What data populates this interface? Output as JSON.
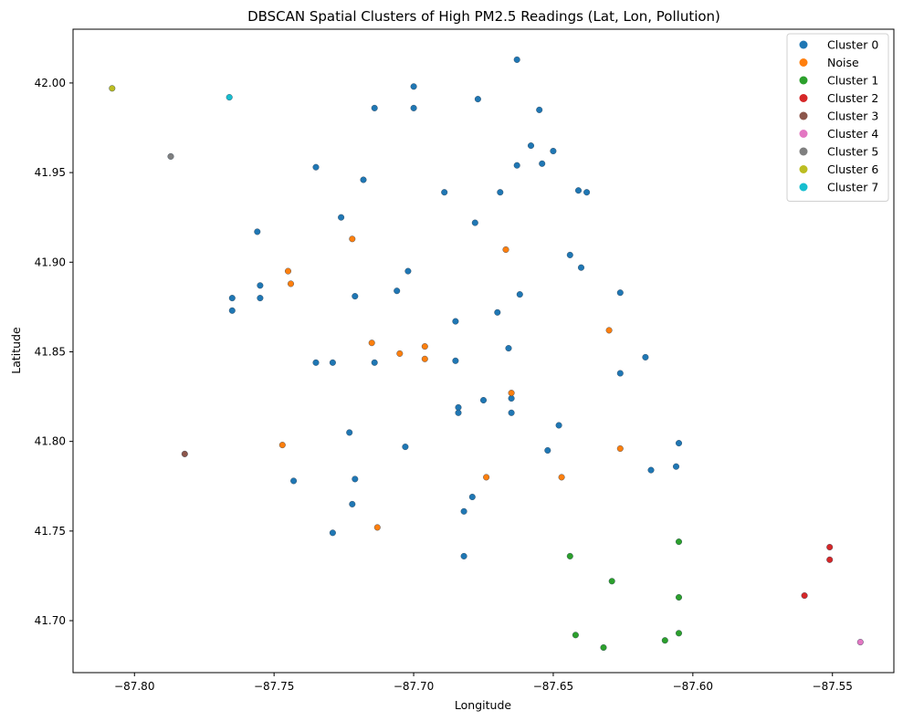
{
  "chart_data": {
    "type": "scatter",
    "title": "DBSCAN Spatial Clusters of High PM2.5 Readings (Lat, Lon, Pollution)",
    "xlabel": "Longitude",
    "ylabel": "Latitude",
    "xlim": [
      -87.822,
      -87.528
    ],
    "ylim": [
      41.671,
      42.03
    ],
    "xticks": [
      -87.8,
      -87.75,
      -87.7,
      -87.65,
      -87.6,
      -87.55
    ],
    "xtick_labels": [
      "−87.80",
      "−87.75",
      "−87.70",
      "−87.65",
      "−87.60",
      "−87.55"
    ],
    "yticks": [
      41.7,
      41.75,
      41.8,
      41.85,
      41.9,
      41.95,
      42.0
    ],
    "ytick_labels": [
      "41.70",
      "41.75",
      "41.80",
      "41.85",
      "41.90",
      "41.95",
      "42.00"
    ],
    "grid": false,
    "legend_position": "top-right",
    "series": [
      {
        "name": "Cluster 0",
        "color": "#1f77b4",
        "points": [
          [
            -87.663,
            42.013
          ],
          [
            -87.7,
            41.998
          ],
          [
            -87.677,
            41.991
          ],
          [
            -87.714,
            41.986
          ],
          [
            -87.7,
            41.986
          ],
          [
            -87.655,
            41.985
          ],
          [
            -87.658,
            41.965
          ],
          [
            -87.65,
            41.962
          ],
          [
            -87.663,
            41.954
          ],
          [
            -87.654,
            41.955
          ],
          [
            -87.735,
            41.953
          ],
          [
            -87.718,
            41.946
          ],
          [
            -87.689,
            41.939
          ],
          [
            -87.669,
            41.939
          ],
          [
            -87.641,
            41.94
          ],
          [
            -87.638,
            41.939
          ],
          [
            -87.726,
            41.925
          ],
          [
            -87.678,
            41.922
          ],
          [
            -87.756,
            41.917
          ],
          [
            -87.644,
            41.904
          ],
          [
            -87.64,
            41.897
          ],
          [
            -87.702,
            41.895
          ],
          [
            -87.755,
            41.887
          ],
          [
            -87.706,
            41.884
          ],
          [
            -87.626,
            41.883
          ],
          [
            -87.765,
            41.88
          ],
          [
            -87.755,
            41.88
          ],
          [
            -87.721,
            41.881
          ],
          [
            -87.662,
            41.882
          ],
          [
            -87.765,
            41.873
          ],
          [
            -87.67,
            41.872
          ],
          [
            -87.685,
            41.867
          ],
          [
            -87.666,
            41.852
          ],
          [
            -87.617,
            41.847
          ],
          [
            -87.735,
            41.844
          ],
          [
            -87.729,
            41.844
          ],
          [
            -87.714,
            41.844
          ],
          [
            -87.685,
            41.845
          ],
          [
            -87.626,
            41.838
          ],
          [
            -87.665,
            41.824
          ],
          [
            -87.675,
            41.823
          ],
          [
            -87.684,
            41.819
          ],
          [
            -87.684,
            41.816
          ],
          [
            -87.665,
            41.816
          ],
          [
            -87.648,
            41.809
          ],
          [
            -87.723,
            41.805
          ],
          [
            -87.605,
            41.799
          ],
          [
            -87.703,
            41.797
          ],
          [
            -87.652,
            41.795
          ],
          [
            -87.606,
            41.786
          ],
          [
            -87.615,
            41.784
          ],
          [
            -87.743,
            41.778
          ],
          [
            -87.721,
            41.779
          ],
          [
            -87.679,
            41.769
          ],
          [
            -87.722,
            41.765
          ],
          [
            -87.682,
            41.761
          ],
          [
            -87.729,
            41.749
          ],
          [
            -87.682,
            41.736
          ]
        ]
      },
      {
        "name": "Noise",
        "color": "#ff7f0e",
        "points": [
          [
            -87.722,
            41.913
          ],
          [
            -87.667,
            41.907
          ],
          [
            -87.745,
            41.895
          ],
          [
            -87.744,
            41.888
          ],
          [
            -87.63,
            41.862
          ],
          [
            -87.715,
            41.855
          ],
          [
            -87.696,
            41.853
          ],
          [
            -87.705,
            41.849
          ],
          [
            -87.696,
            41.846
          ],
          [
            -87.665,
            41.827
          ],
          [
            -87.747,
            41.798
          ],
          [
            -87.626,
            41.796
          ],
          [
            -87.674,
            41.78
          ],
          [
            -87.647,
            41.78
          ],
          [
            -87.713,
            41.752
          ]
        ]
      },
      {
        "name": "Cluster 1",
        "color": "#2ca02c",
        "points": [
          [
            -87.605,
            41.744
          ],
          [
            -87.644,
            41.736
          ],
          [
            -87.629,
            41.722
          ],
          [
            -87.605,
            41.713
          ],
          [
            -87.605,
            41.693
          ],
          [
            -87.642,
            41.692
          ],
          [
            -87.61,
            41.689
          ],
          [
            -87.632,
            41.685
          ]
        ]
      },
      {
        "name": "Cluster 2",
        "color": "#d62728",
        "points": [
          [
            -87.551,
            41.741
          ],
          [
            -87.551,
            41.734
          ],
          [
            -87.56,
            41.714
          ]
        ]
      },
      {
        "name": "Cluster 3",
        "color": "#8c564b",
        "points": [
          [
            -87.782,
            41.793
          ]
        ]
      },
      {
        "name": "Cluster 4",
        "color": "#e377c2",
        "points": [
          [
            -87.54,
            41.688
          ]
        ]
      },
      {
        "name": "Cluster 5",
        "color": "#7f7f7f",
        "points": [
          [
            -87.787,
            41.959
          ]
        ]
      },
      {
        "name": "Cluster 6",
        "color": "#bcbd22",
        "points": [
          [
            -87.808,
            41.997
          ]
        ]
      },
      {
        "name": "Cluster 7",
        "color": "#17becf",
        "points": [
          [
            -87.766,
            41.992
          ]
        ]
      }
    ]
  }
}
